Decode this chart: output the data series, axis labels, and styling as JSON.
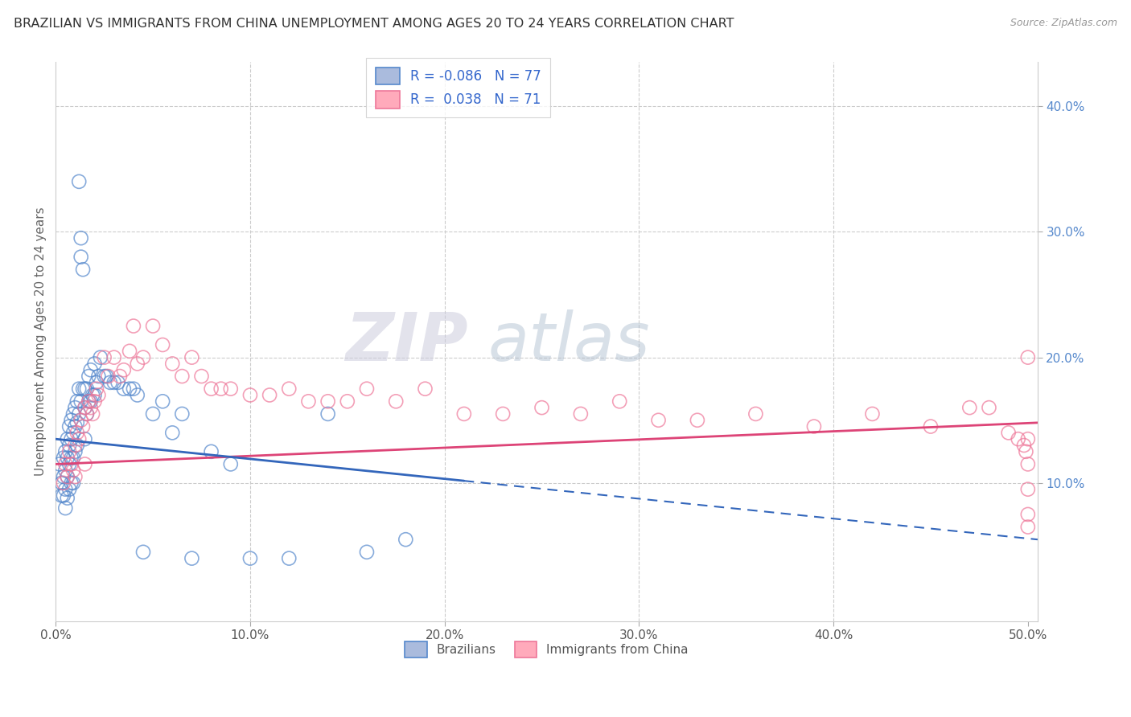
{
  "title": "BRAZILIAN VS IMMIGRANTS FROM CHINA UNEMPLOYMENT AMONG AGES 20 TO 24 YEARS CORRELATION CHART",
  "source": "Source: ZipAtlas.com",
  "ylabel": "Unemployment Among Ages 20 to 24 years",
  "xmin": 0.0,
  "xmax": 0.505,
  "ymin": -0.01,
  "ymax": 0.435,
  "xticks": [
    0.0,
    0.1,
    0.2,
    0.3,
    0.4,
    0.5
  ],
  "xticklabels": [
    "0.0%",
    "10.0%",
    "20.0%",
    "30.0%",
    "40.0%",
    "50.0%"
  ],
  "yticks_right": [
    0.1,
    0.2,
    0.3,
    0.4
  ],
  "ytick_right_labels": [
    "10.0%",
    "20.0%",
    "30.0%",
    "40.0%"
  ],
  "grid_color": "#cccccc",
  "background_color": "#ffffff",
  "blue_edge": "#5588cc",
  "pink_edge": "#ee7799",
  "blue_line_color": "#3366bb",
  "pink_line_color": "#dd4477",
  "label_brazilians": "Brazilians",
  "label_immigrants": "Immigrants from China",
  "watermark_zip": "ZIP",
  "watermark_atlas": "atlas",
  "title_color": "#333333",
  "axis_label_color": "#666666",
  "right_tick_color": "#5588cc",
  "blue_R": "-0.086",
  "blue_N": "77",
  "pink_R": "0.038",
  "pink_N": "71",
  "blue_scatter_x": [
    0.002,
    0.003,
    0.003,
    0.004,
    0.004,
    0.004,
    0.005,
    0.005,
    0.005,
    0.005,
    0.006,
    0.006,
    0.006,
    0.006,
    0.007,
    0.007,
    0.007,
    0.007,
    0.008,
    0.008,
    0.008,
    0.008,
    0.009,
    0.009,
    0.009,
    0.009,
    0.01,
    0.01,
    0.01,
    0.011,
    0.011,
    0.011,
    0.012,
    0.012,
    0.012,
    0.013,
    0.013,
    0.013,
    0.014,
    0.014,
    0.015,
    0.015,
    0.015,
    0.016,
    0.016,
    0.017,
    0.017,
    0.018,
    0.018,
    0.019,
    0.02,
    0.02,
    0.021,
    0.022,
    0.023,
    0.025,
    0.026,
    0.028,
    0.03,
    0.032,
    0.035,
    0.038,
    0.04,
    0.042,
    0.045,
    0.05,
    0.055,
    0.06,
    0.065,
    0.07,
    0.08,
    0.09,
    0.1,
    0.12,
    0.14,
    0.16,
    0.18
  ],
  "blue_scatter_y": [
    0.115,
    0.1,
    0.09,
    0.12,
    0.105,
    0.09,
    0.125,
    0.11,
    0.095,
    0.08,
    0.135,
    0.12,
    0.105,
    0.088,
    0.145,
    0.13,
    0.115,
    0.095,
    0.15,
    0.135,
    0.12,
    0.1,
    0.155,
    0.14,
    0.12,
    0.1,
    0.16,
    0.145,
    0.125,
    0.165,
    0.148,
    0.13,
    0.175,
    0.34,
    0.155,
    0.295,
    0.165,
    0.28,
    0.27,
    0.175,
    0.175,
    0.16,
    0.135,
    0.175,
    0.155,
    0.185,
    0.165,
    0.19,
    0.165,
    0.17,
    0.195,
    0.17,
    0.18,
    0.185,
    0.2,
    0.185,
    0.185,
    0.18,
    0.18,
    0.18,
    0.175,
    0.175,
    0.175,
    0.17,
    0.045,
    0.155,
    0.165,
    0.14,
    0.155,
    0.04,
    0.125,
    0.115,
    0.04,
    0.04,
    0.155,
    0.045,
    0.055
  ],
  "pink_scatter_x": [
    0.004,
    0.005,
    0.006,
    0.007,
    0.008,
    0.009,
    0.01,
    0.01,
    0.011,
    0.012,
    0.013,
    0.014,
    0.015,
    0.015,
    0.016,
    0.017,
    0.018,
    0.019,
    0.02,
    0.021,
    0.022,
    0.025,
    0.027,
    0.03,
    0.033,
    0.035,
    0.038,
    0.04,
    0.042,
    0.045,
    0.05,
    0.055,
    0.06,
    0.065,
    0.07,
    0.075,
    0.08,
    0.085,
    0.09,
    0.1,
    0.11,
    0.12,
    0.13,
    0.14,
    0.15,
    0.16,
    0.175,
    0.19,
    0.21,
    0.23,
    0.25,
    0.27,
    0.29,
    0.31,
    0.33,
    0.36,
    0.39,
    0.42,
    0.45,
    0.47,
    0.48,
    0.49,
    0.495,
    0.498,
    0.499,
    0.5,
    0.5,
    0.5,
    0.5,
    0.5,
    0.5
  ],
  "pink_scatter_y": [
    0.1,
    0.115,
    0.105,
    0.125,
    0.115,
    0.11,
    0.13,
    0.105,
    0.14,
    0.135,
    0.15,
    0.145,
    0.16,
    0.115,
    0.155,
    0.165,
    0.16,
    0.155,
    0.165,
    0.175,
    0.17,
    0.2,
    0.185,
    0.2,
    0.185,
    0.19,
    0.205,
    0.225,
    0.195,
    0.2,
    0.225,
    0.21,
    0.195,
    0.185,
    0.2,
    0.185,
    0.175,
    0.175,
    0.175,
    0.17,
    0.17,
    0.175,
    0.165,
    0.165,
    0.165,
    0.175,
    0.165,
    0.175,
    0.155,
    0.155,
    0.16,
    0.155,
    0.165,
    0.15,
    0.15,
    0.155,
    0.145,
    0.155,
    0.145,
    0.16,
    0.16,
    0.14,
    0.135,
    0.13,
    0.125,
    0.2,
    0.135,
    0.115,
    0.095,
    0.075,
    0.065
  ],
  "blue_trend_solid_end": 0.21,
  "blue_trend_start_y": 0.135,
  "blue_trend_end_y": 0.055,
  "pink_trend_start_y": 0.115,
  "pink_trend_end_y": 0.148
}
